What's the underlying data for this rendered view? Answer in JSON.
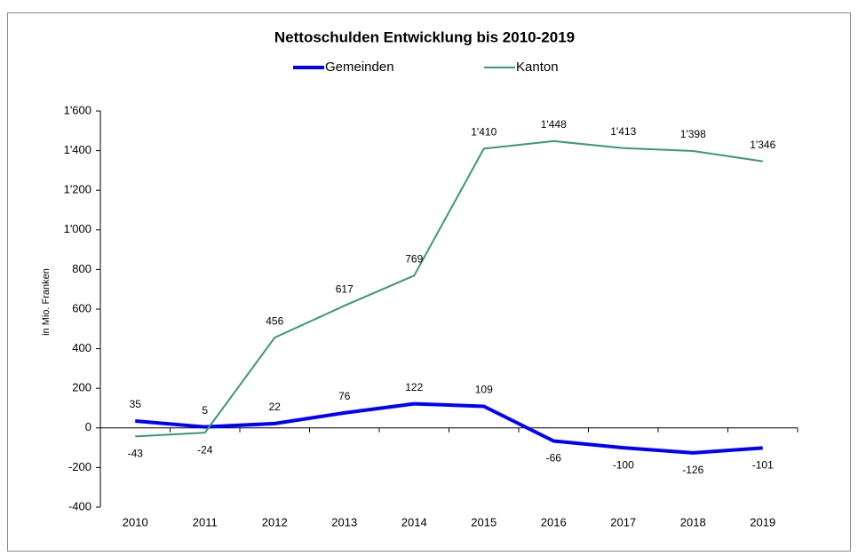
{
  "chart_data": {
    "type": "line",
    "title": "Nettoschulden Entwicklung bis  2010-2019",
    "ylabel": "in Mio. Franken",
    "categories": [
      "2010",
      "2011",
      "2012",
      "2013",
      "2014",
      "2015",
      "2016",
      "2017",
      "2018",
      "2019"
    ],
    "series": [
      {
        "name": "Gemeinden",
        "color": "#0000ff",
        "values": [
          35,
          5,
          22,
          76,
          122,
          109,
          -66,
          -100,
          -126,
          -101
        ]
      },
      {
        "name": "Kanton",
        "color": "#3a9a6a",
        "values": [
          -43,
          -24,
          456,
          617,
          769,
          1410,
          1448,
          1413,
          1398,
          1346
        ],
        "value_labels": [
          "-43",
          "-24",
          "456",
          "617",
          "769",
          "1'410",
          "1'448",
          "1'413",
          "1'398",
          "1'346"
        ]
      }
    ],
    "ylim": [
      -400,
      1600
    ],
    "yticks": [
      -400,
      -200,
      0,
      200,
      400,
      600,
      800,
      {
        "value": 1000,
        "label": "1'000"
      },
      {
        "value": 1200,
        "label": "1'200"
      },
      {
        "value": 1400,
        "label": "1'400"
      },
      {
        "value": 1600,
        "label": "1'600"
      }
    ],
    "legend": "top"
  }
}
